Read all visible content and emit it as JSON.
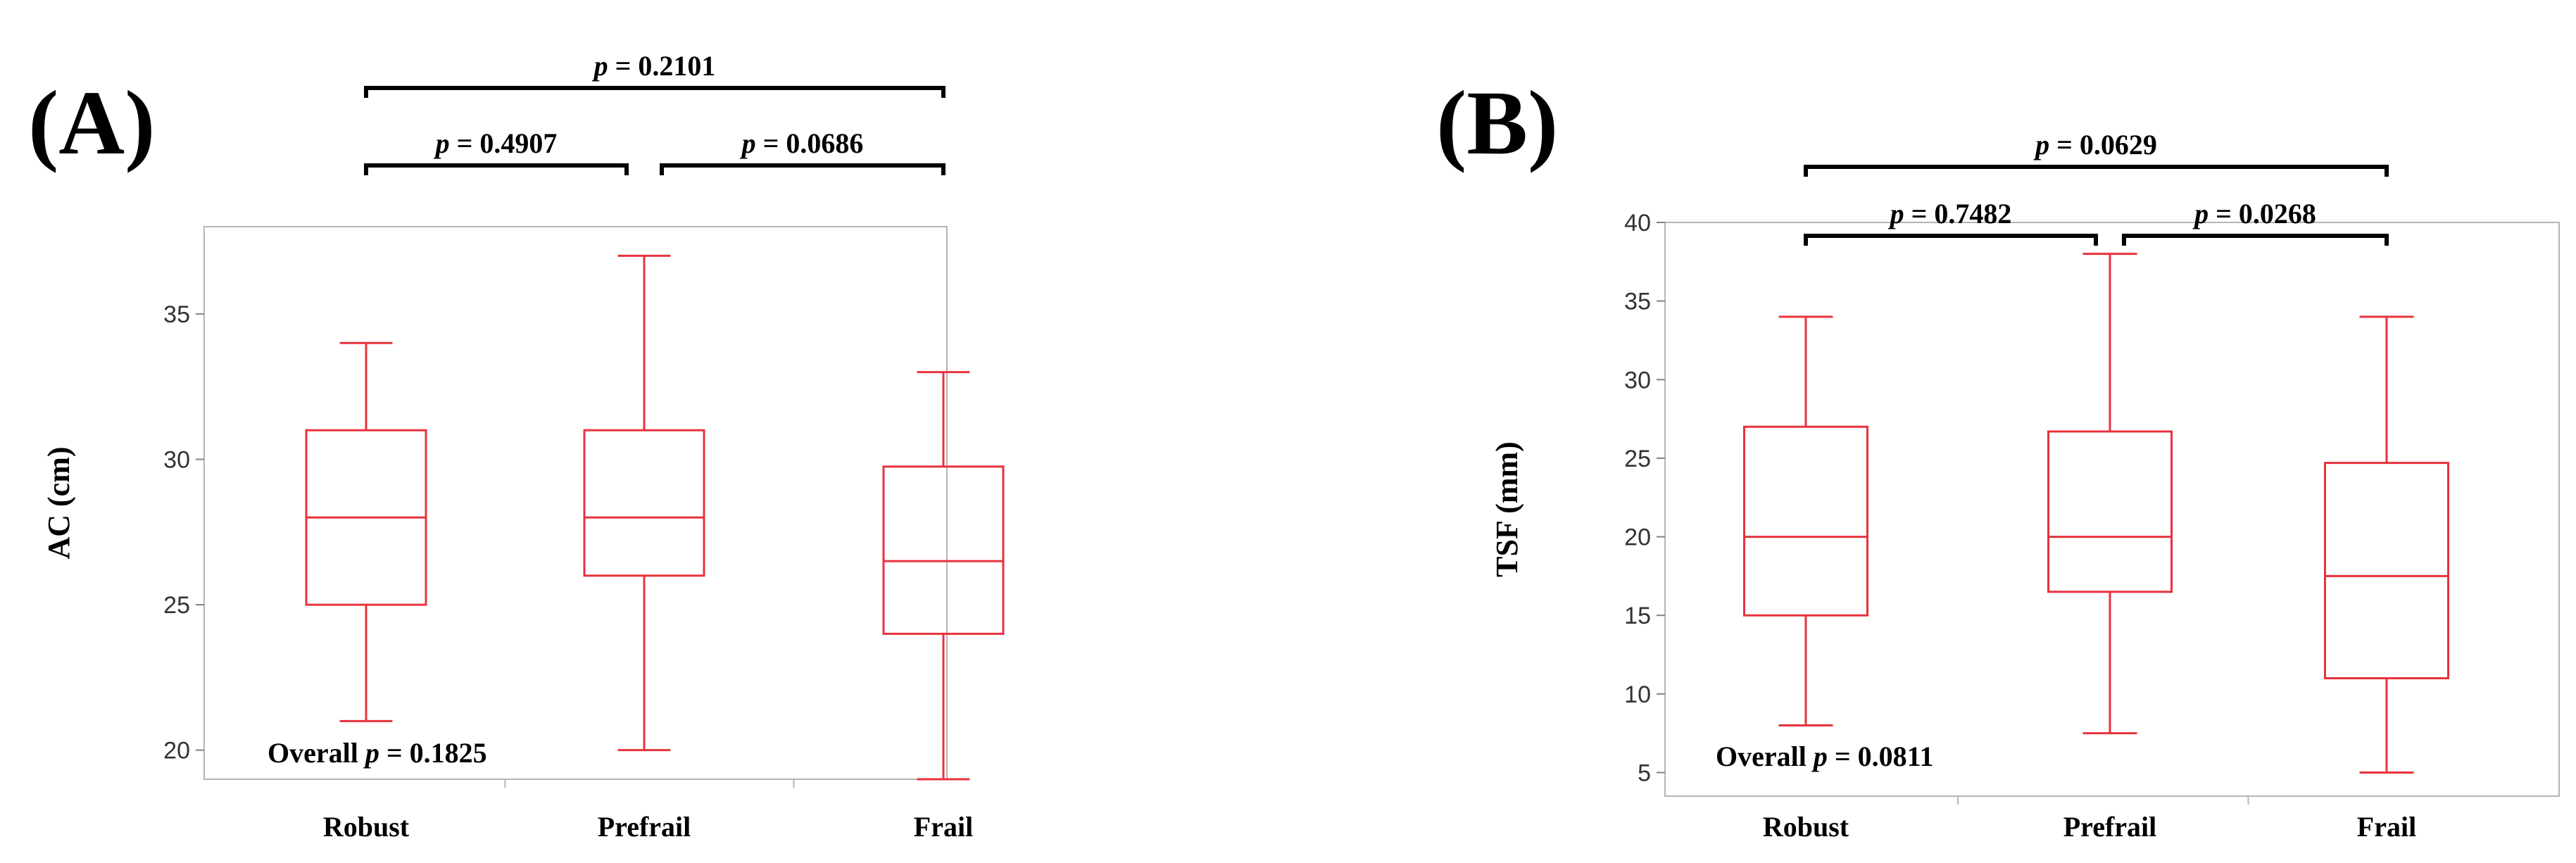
{
  "chart_data": [
    {
      "type": "box",
      "panel_label": "(A)",
      "ylabel": "AC (cm)",
      "ylim": [
        19,
        38
      ],
      "yticks": [
        20,
        25,
        30,
        35
      ],
      "categories": [
        "Robust",
        "Prefrail",
        "Frail"
      ],
      "boxes": [
        {
          "min": 21,
          "q1": 25,
          "median": 28,
          "q3": 31,
          "max": 34
        },
        {
          "min": 20,
          "q1": 26,
          "median": 28,
          "q3": 31,
          "max": 37
        },
        {
          "min": 19,
          "q1": 24,
          "median": 26.5,
          "q3": 29.75,
          "max": 33
        }
      ],
      "overall": {
        "prefix": "Overall ",
        "p": "p",
        "rest": " = 0.1825"
      },
      "comparisons": [
        {
          "from": 0,
          "to": 1,
          "level": 1,
          "p": "p",
          "rest": " = 0.4907"
        },
        {
          "from": 1,
          "to": 2,
          "level": 1,
          "p": "p",
          "rest": " = 0.0686"
        },
        {
          "from": 0,
          "to": 2,
          "level": 2,
          "p": "p",
          "rest": " = 0.2101"
        }
      ],
      "color": "#e8323c",
      "grid": false
    },
    {
      "type": "box",
      "panel_label": "(B)",
      "ylabel": "TSF (mm)",
      "ylim": [
        3.5,
        40
      ],
      "yticks": [
        5,
        10,
        15,
        20,
        25,
        30,
        35,
        40
      ],
      "categories": [
        "Robust",
        "Prefrail",
        "Frail"
      ],
      "boxes": [
        {
          "min": 8,
          "q1": 15,
          "median": 20,
          "q3": 27,
          "max": 34
        },
        {
          "min": 7.5,
          "q1": 16.5,
          "median": 20,
          "q3": 26.7,
          "max": 38
        },
        {
          "min": 5,
          "q1": 11,
          "median": 17.5,
          "q3": 24.7,
          "max": 34
        }
      ],
      "overall": {
        "prefix": "Overall ",
        "p": "p",
        "rest": " = 0.0811"
      },
      "comparisons": [
        {
          "from": 0,
          "to": 1,
          "level": 1,
          "p": "p",
          "rest": " = 0.7482"
        },
        {
          "from": 1,
          "to": 2,
          "level": 1,
          "p": "p",
          "rest": " = 0.0268"
        },
        {
          "from": 0,
          "to": 2,
          "level": 2,
          "p": "p",
          "rest": " = 0.0629"
        }
      ],
      "color": "#e8323c",
      "grid": false
    }
  ]
}
